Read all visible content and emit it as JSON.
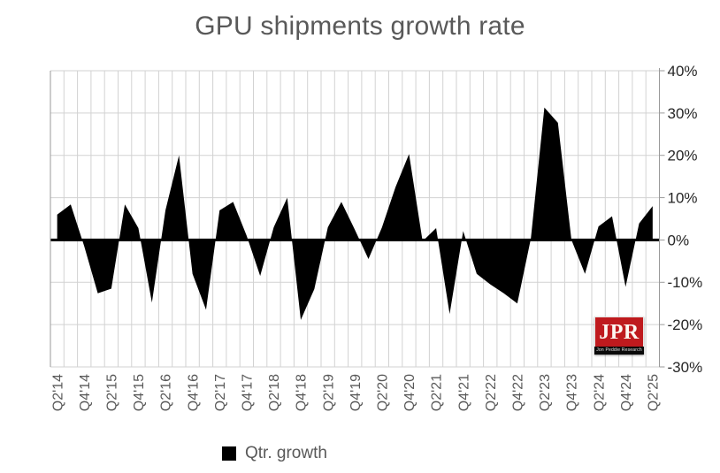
{
  "header": {
    "title": "GPU shipments growth rate",
    "title_color": "#595959"
  },
  "legend": {
    "label": "Qtr. growth",
    "swatch_color": "#000000"
  },
  "logo": {
    "acronym": "JPR",
    "full_name": "Jon Peddie Research",
    "red": "#bf1a1e"
  },
  "chart_data": {
    "type": "area",
    "title": "GPU shipments growth rate",
    "series_name": "Qtr. growth",
    "series_color": "#000000",
    "legend_position": "bottom",
    "grid": true,
    "ylim": [
      -30,
      40
    ],
    "y_tick_labels": [
      "40%",
      "30%",
      "20%",
      "10%",
      "0%",
      "-10%",
      "-20%",
      "-30%"
    ],
    "y_tick_values": [
      40,
      30,
      20,
      10,
      0,
      -10,
      -20,
      -30
    ],
    "x_label_rotation": -90,
    "x_tick_labels": [
      "Q2'14",
      "Q4'14",
      "Q2'15",
      "Q4'15",
      "Q2'16",
      "Q4'16",
      "Q2'17",
      "Q4'17",
      "Q2'18",
      "Q4'18",
      "Q2'19",
      "Q4'19",
      "Q2'20",
      "Q4'20",
      "Q2'21",
      "Q4'21",
      "Q2'22",
      "Q4'22",
      "Q2'23",
      "Q4'23",
      "Q2'24",
      "Q4'24",
      "Q2'25"
    ],
    "categories": [
      "Q2'14",
      "Q3'14",
      "Q4'14",
      "Q1'15",
      "Q2'15",
      "Q3'15",
      "Q4'15",
      "Q1'16",
      "Q2'16",
      "Q3'16",
      "Q4'16",
      "Q1'17",
      "Q2'17",
      "Q3'17",
      "Q4'17",
      "Q1'18",
      "Q2'18",
      "Q3'18",
      "Q4'18",
      "Q1'19",
      "Q2'19",
      "Q3'19",
      "Q4'19",
      "Q1'20",
      "Q2'20",
      "Q3'20",
      "Q4'20",
      "Q1'21",
      "Q2'21",
      "Q3'21",
      "Q4'21",
      "Q1'22",
      "Q2'22",
      "Q3'22",
      "Q4'22",
      "Q1'23",
      "Q2'23",
      "Q3'23",
      "Q4'23",
      "Q1'24",
      "Q2'24",
      "Q3'24",
      "Q4'24",
      "Q1'25",
      "Q2'25"
    ],
    "values": [
      6.0,
      8.4,
      -1.5,
      -12.6,
      -11.5,
      8.4,
      2.8,
      -14.8,
      7.0,
      20.0,
      -8.0,
      -16.5,
      7.0,
      9.0,
      1.0,
      -8.5,
      3.0,
      10.0,
      -18.9,
      -11.6,
      3.0,
      9.0,
      2.4,
      -4.5,
      3.0,
      12.5,
      20.3,
      -0.3,
      2.8,
      -17.5,
      2.1,
      -8.0,
      -10.5,
      -12.6,
      -15.0,
      0.3,
      31.3,
      27.7,
      0.0,
      -8.0,
      3.2,
      5.6,
      -11.1,
      3.9,
      8.0
    ]
  }
}
